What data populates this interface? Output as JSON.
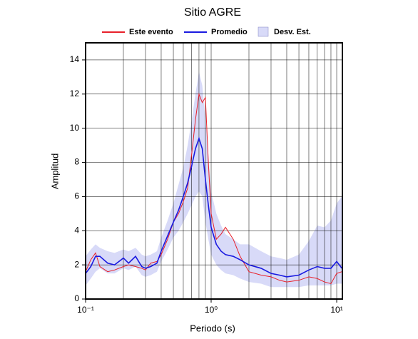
{
  "chart_data": {
    "type": "line",
    "title": "Sitio AGRE",
    "x_label": "Periodo (s)",
    "y_label": "Amplitud",
    "x_scale": "log",
    "xlim": [
      0.1,
      11.1
    ],
    "ylim": [
      0,
      15
    ],
    "xticks": [
      {
        "value": 0.1,
        "label": "10⁻¹"
      },
      {
        "value": 1,
        "label": "10⁰"
      },
      {
        "value": 10,
        "label": "10¹"
      }
    ],
    "x_gridlines": [
      0.2,
      0.3,
      0.4,
      0.5,
      0.6,
      0.7,
      0.8,
      0.9,
      1,
      2,
      3,
      4,
      5,
      6,
      7,
      8,
      9,
      10
    ],
    "yticks": [
      0,
      2,
      4,
      6,
      8,
      10,
      12,
      14
    ],
    "grid": true,
    "x": [
      0.1,
      0.11,
      0.12,
      0.13,
      0.15,
      0.17,
      0.2,
      0.22,
      0.25,
      0.28,
      0.3,
      0.33,
      0.37,
      0.4,
      0.45,
      0.5,
      0.55,
      0.6,
      0.65,
      0.7,
      0.75,
      0.8,
      0.85,
      0.9,
      0.95,
      1.0,
      1.1,
      1.2,
      1.3,
      1.5,
      1.7,
      2,
      2.5,
      3,
      3.5,
      4,
      5,
      6,
      7,
      8,
      9,
      10,
      11
    ],
    "series": [
      {
        "name": "Este evento",
        "color": "#e8202a",
        "values": [
          1.6,
          2.3,
          2.7,
          1.9,
          1.6,
          1.7,
          1.9,
          2.0,
          1.9,
          1.8,
          1.7,
          2.1,
          2.2,
          2.6,
          3.5,
          4.5,
          5.0,
          5.7,
          6.5,
          8.5,
          10.5,
          12.0,
          11.5,
          11.8,
          8.0,
          5.0,
          3.5,
          3.8,
          4.2,
          3.5,
          2.5,
          1.6,
          1.4,
          1.3,
          1.1,
          1.0,
          1.1,
          1.3,
          1.2,
          1.0,
          0.9,
          1.5,
          1.6
        ]
      },
      {
        "name": "Promedio",
        "color": "#1a1ae0",
        "values": [
          1.5,
          1.9,
          2.5,
          2.5,
          2.1,
          2.0,
          2.4,
          2.1,
          2.5,
          1.9,
          1.8,
          1.9,
          2.1,
          2.8,
          3.7,
          4.5,
          5.2,
          6.0,
          6.8,
          7.8,
          8.8,
          9.4,
          8.8,
          7.0,
          5.5,
          4.2,
          3.2,
          2.8,
          2.6,
          2.5,
          2.3,
          2.0,
          1.8,
          1.5,
          1.4,
          1.3,
          1.4,
          1.7,
          1.9,
          1.8,
          1.8,
          2.2,
          1.8
        ]
      },
      {
        "name": "Desv. Est.",
        "color": "#d8daf8",
        "type": "band",
        "upper": [
          2.5,
          2.9,
          3.2,
          3.0,
          2.8,
          2.7,
          2.9,
          2.8,
          3.0,
          2.6,
          2.5,
          2.6,
          2.8,
          3.6,
          4.6,
          5.6,
          6.7,
          7.7,
          9.0,
          10.5,
          12.0,
          13.3,
          12.5,
          10.5,
          8.5,
          6.3,
          5.0,
          4.3,
          3.8,
          3.5,
          3.2,
          3.2,
          2.8,
          2.5,
          2.4,
          2.3,
          2.6,
          3.4,
          4.3,
          4.2,
          4.6,
          5.6,
          6.0
        ],
        "lower": [
          0.8,
          1.2,
          1.6,
          1.8,
          1.5,
          1.5,
          1.8,
          1.7,
          1.9,
          1.4,
          1.3,
          1.4,
          1.6,
          2.2,
          2.9,
          3.6,
          4.0,
          4.5,
          5.0,
          5.5,
          6.0,
          6.3,
          6.0,
          4.5,
          3.5,
          2.6,
          2.0,
          1.7,
          1.5,
          1.4,
          1.2,
          1.0,
          0.9,
          0.7,
          0.7,
          0.7,
          0.7,
          0.8,
          0.8,
          0.8,
          0.8,
          0.9,
          0.9
        ]
      }
    ]
  }
}
